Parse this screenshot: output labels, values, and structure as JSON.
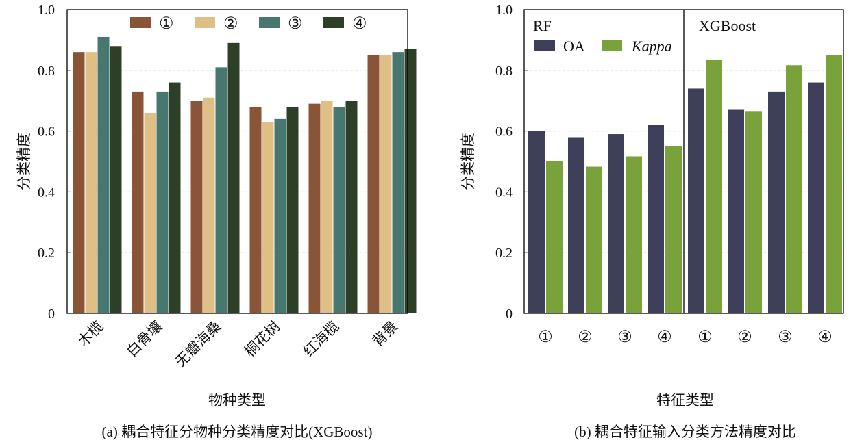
{
  "chart_data": [
    {
      "type": "bar",
      "title": "(a) 耦合特征分物种分类精度对比(XGBoost)",
      "xlabel": "物种类型",
      "ylabel": "分类精度",
      "ylim": [
        0,
        1.0
      ],
      "yticks": [
        "0",
        "0.2",
        "0.4",
        "0.6",
        "0.8",
        "1.0"
      ],
      "grid": "horizontal dashed",
      "legend_position": "top",
      "categories": [
        "木榄",
        "白骨壤",
        "无瓣海桑",
        "桐花树",
        "红海榄",
        "背景"
      ],
      "series": [
        {
          "name": "①",
          "color": "#8a5536",
          "values": [
            0.86,
            0.73,
            0.7,
            0.68,
            0.69,
            0.85
          ]
        },
        {
          "name": "②",
          "color": "#e0bf87",
          "values": [
            0.86,
            0.66,
            0.71,
            0.63,
            0.7,
            0.85
          ]
        },
        {
          "name": "③",
          "color": "#47776e",
          "values": [
            0.91,
            0.73,
            0.81,
            0.64,
            0.68,
            0.86
          ]
        },
        {
          "name": "④",
          "color": "#2e3f27",
          "values": [
            0.88,
            0.76,
            0.89,
            0.68,
            0.7,
            0.87
          ]
        }
      ]
    },
    {
      "type": "bar",
      "title": "(b) 耦合特征输入分类方法精度对比",
      "xlabel": "特征类型",
      "ylabel": "分类精度",
      "ylim": [
        0,
        1.0
      ],
      "yticks": [
        "0",
        "0.2",
        "0.4",
        "0.6",
        "0.8",
        "1.0"
      ],
      "grid": "horizontal dashed",
      "legend_position": "top-left",
      "panels": [
        "RF",
        "XGBoost"
      ],
      "categories": [
        "①",
        "②",
        "③",
        "④",
        "①",
        "②",
        "③",
        "④"
      ],
      "series": [
        {
          "name": "OA",
          "color": "#3e3f58",
          "values": [
            0.6,
            0.58,
            0.59,
            0.62,
            0.74,
            0.67,
            0.73,
            0.76
          ]
        },
        {
          "name": "Kappa",
          "color": "#79a33a",
          "values": [
            0.5,
            0.483,
            0.517,
            0.55,
            0.834,
            0.666,
            0.817,
            0.85
          ]
        }
      ]
    }
  ]
}
